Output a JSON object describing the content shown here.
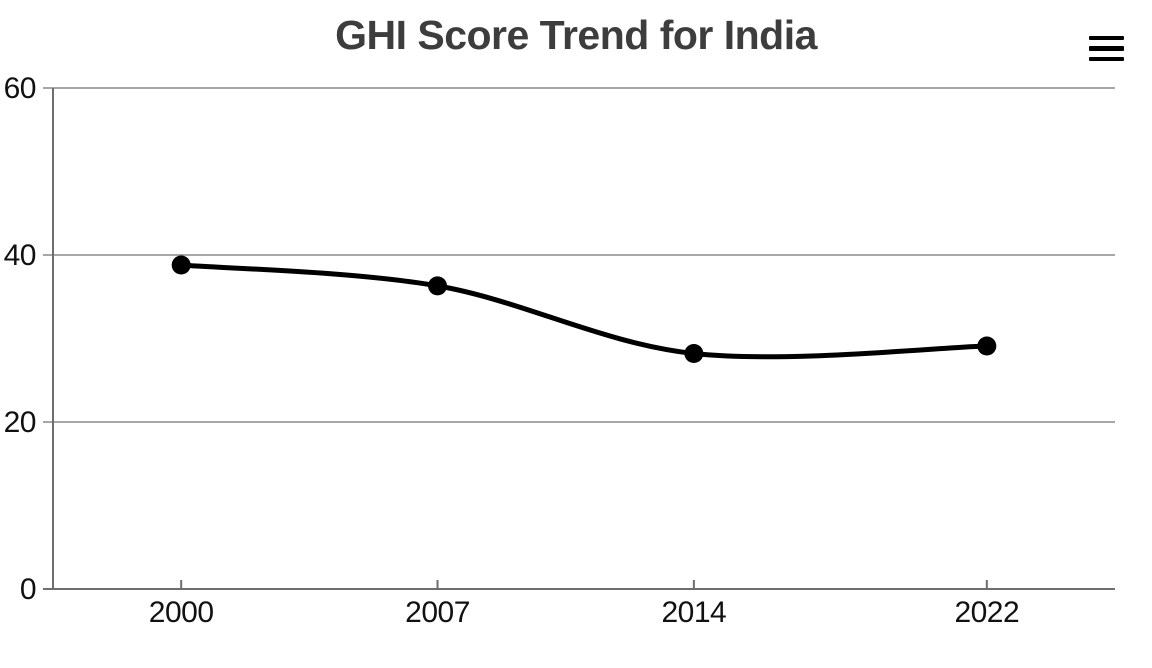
{
  "header": {
    "title": "GHI Score Trend for India",
    "menu_icon": "hamburger-icon"
  },
  "chart_data": {
    "type": "line",
    "title": "GHI Score Trend for India",
    "series_name": "GHI Score",
    "x": [
      2000,
      2007,
      2014,
      2022
    ],
    "values": [
      38.8,
      36.3,
      28.2,
      29.1
    ],
    "x_tick_labels": [
      "2000",
      "2007",
      "2014",
      "2022"
    ],
    "y_ticks": [
      0,
      20,
      40,
      60
    ],
    "xlim": [
      1996.5,
      2025.5
    ],
    "ylim": [
      0,
      60
    ],
    "xlabel": "",
    "ylabel": "",
    "grid": true,
    "smooth": true,
    "legend": "none",
    "line_color": "#000000",
    "marker_color": "#000000",
    "grid_color": "#8a8a8a",
    "axis_color": "#6e6e6e",
    "tick_label_color": "#111111",
    "title_color": "#3d3d3d"
  }
}
